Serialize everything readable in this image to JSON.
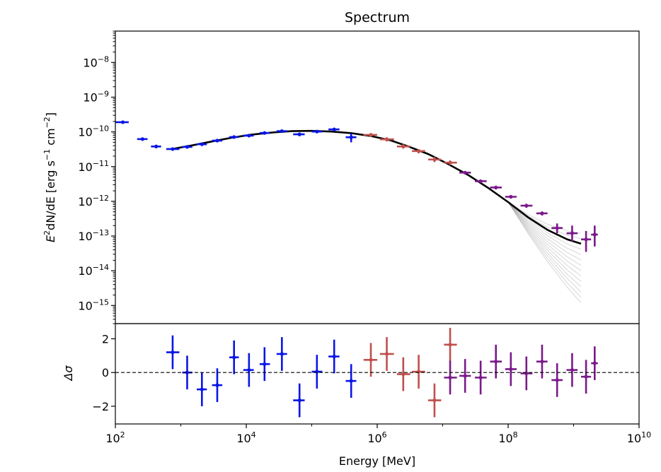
{
  "chart_data": [
    {
      "panel": "spectrum",
      "type": "scatter",
      "title": "Spectrum",
      "xlabel": "Energy [MeV]",
      "ylabel_parts": [
        "E",
        "2",
        "dN/dE [erg s",
        "−1",
        " cm",
        "−2",
        "]"
      ],
      "xscale": "log",
      "yscale": "log",
      "xlim": [
        100,
        10000000000
      ],
      "ylim": [
        3e-16,
        8e-08
      ],
      "xticks": [
        {
          "base": "10",
          "exp": "2"
        },
        {
          "base": "10",
          "exp": "4"
        },
        {
          "base": "10",
          "exp": "6"
        },
        {
          "base": "10",
          "exp": "8"
        },
        {
          "base": "10",
          "exp": "10"
        }
      ],
      "yticks": [
        {
          "base": "10",
          "exp": "−8"
        },
        {
          "base": "10",
          "exp": "−9"
        },
        {
          "base": "10",
          "exp": "−10"
        },
        {
          "base": "10",
          "exp": "−11"
        },
        {
          "base": "10",
          "exp": "−12"
        },
        {
          "base": "10",
          "exp": "−13"
        },
        {
          "base": "10",
          "exp": "−14"
        },
        {
          "base": "10",
          "exp": "−15"
        }
      ],
      "model": {
        "name": "best-fit log-parabola with uncertainty band",
        "curve": [
          [
            800,
            3.3e-11
          ],
          [
            1500,
            4.1e-11
          ],
          [
            3000,
            5.3e-11
          ],
          [
            6000,
            6.8e-11
          ],
          [
            12000,
            8.3e-11
          ],
          [
            25000,
            9.6e-11
          ],
          [
            50000,
            1.05e-10
          ],
          [
            100000,
            1.07e-10
          ],
          [
            200000,
            1.02e-10
          ],
          [
            400000,
            9.2e-11
          ],
          [
            800000,
            7.6e-11
          ],
          [
            1600000,
            5.7e-11
          ],
          [
            3000000,
            3.8e-11
          ],
          [
            6000000,
            2.3e-11
          ],
          [
            12000000,
            1.2e-11
          ],
          [
            25000000,
            5.6e-12
          ],
          [
            50000000,
            2.4e-12
          ],
          [
            100000000,
            9.5e-13
          ],
          [
            200000000,
            3.5e-13
          ],
          [
            400000000,
            1.5e-13
          ],
          [
            800000000,
            8e-14
          ],
          [
            1300000000,
            6e-14
          ]
        ],
        "band_lower_end": 1.2e-15,
        "band_upper_end": 1.2e-13
      },
      "series": [
        {
          "name": "low-energy points (blue)",
          "color": "#0a16e6",
          "points": [
            {
              "x": 130,
              "y": 1.9e-10,
              "xlo": 100,
              "xhi": 160,
              "ylo": 1.85e-10,
              "yhi": 1.95e-10
            },
            {
              "x": 260,
              "y": 6.2e-11,
              "xlo": 215,
              "xhi": 310,
              "ylo": 6e-11,
              "yhi": 6.4e-11
            },
            {
              "x": 420,
              "y": 3.8e-11,
              "xlo": 350,
              "xhi": 500,
              "ylo": 3.4e-11,
              "yhi": 4.2e-11
            },
            {
              "x": 750,
              "y": 3.2e-11,
              "xlo": 600,
              "xhi": 950,
              "ylo": 3e-11,
              "yhi": 3.4e-11
            },
            {
              "x": 1250,
              "y": 3.7e-11,
              "xlo": 1050,
              "xhi": 1500,
              "ylo": 3.5e-11,
              "yhi": 3.9e-11
            },
            {
              "x": 2100,
              "y": 4.4e-11,
              "xlo": 1750,
              "xhi": 2500,
              "ylo": 4.2e-11,
              "yhi": 4.6e-11
            },
            {
              "x": 3600,
              "y": 5.6e-11,
              "xlo": 3000,
              "xhi": 4300,
              "ylo": 5.3e-11,
              "yhi": 5.9e-11
            },
            {
              "x": 6500,
              "y": 7.1e-11,
              "xlo": 5500,
              "xhi": 7700,
              "ylo": 6.7e-11,
              "yhi": 7.5e-11
            },
            {
              "x": 11000,
              "y": 7.8e-11,
              "xlo": 9000,
              "xhi": 13000,
              "ylo": 7.4e-11,
              "yhi": 8.2e-11
            },
            {
              "x": 19000,
              "y": 9.3e-11,
              "xlo": 16000,
              "xhi": 23000,
              "ylo": 8.8e-11,
              "yhi": 9.8e-11
            },
            {
              "x": 35000,
              "y": 1.05e-10,
              "xlo": 29000,
              "xhi": 42000,
              "ylo": 9.5e-11,
              "yhi": 1.15e-10
            },
            {
              "x": 65000,
              "y": 8.5e-11,
              "xlo": 52000,
              "xhi": 78000,
              "ylo": 7.5e-11,
              "yhi": 9.5e-11
            },
            {
              "x": 120000,
              "y": 1.02e-10,
              "xlo": 100000,
              "xhi": 145000,
              "ylo": 9.2e-11,
              "yhi": 1.12e-10
            },
            {
              "x": 220000,
              "y": 1.18e-10,
              "xlo": 180000,
              "xhi": 265000,
              "ylo": 1.05e-10,
              "yhi": 1.3e-10
            },
            {
              "x": 400000,
              "y": 7e-11,
              "xlo": 330000,
              "xhi": 480000,
              "ylo": 5e-11,
              "yhi": 9e-11
            }
          ]
        },
        {
          "name": "mid-energy points (red)",
          "color": "#c0504d",
          "points": [
            {
              "x": 800000,
              "y": 8.2e-11,
              "xlo": 620000,
              "xhi": 1000000,
              "ylo": 7.2e-11,
              "yhi": 9.2e-11
            },
            {
              "x": 1400000,
              "y": 6.1e-11,
              "xlo": 1100000,
              "xhi": 1800000,
              "ylo": 5.3e-11,
              "yhi": 7e-11
            },
            {
              "x": 2500000,
              "y": 3.8e-11,
              "xlo": 2000000,
              "xhi": 3200000,
              "ylo": 3.3e-11,
              "yhi": 4.4e-11
            },
            {
              "x": 4300000,
              "y": 2.8e-11,
              "xlo": 3400000,
              "xhi": 5400000,
              "ylo": 2.4e-11,
              "yhi": 3.2e-11
            },
            {
              "x": 7500000,
              "y": 1.6e-11,
              "xlo": 6000000,
              "xhi": 9500000,
              "ylo": 1.35e-11,
              "yhi": 1.9e-11
            },
            {
              "x": 13000000,
              "y": 1.3e-11,
              "xlo": 10500000,
              "xhi": 16500000,
              "ylo": 1.1e-11,
              "yhi": 1.5e-11
            }
          ]
        },
        {
          "name": "high-energy points (purple)",
          "color": "#7a1a8a",
          "points": [
            {
              "x": 22000000,
              "y": 6.7e-12,
              "xlo": 18000000,
              "xhi": 27000000,
              "ylo": 6.1e-12,
              "yhi": 7.3e-12
            },
            {
              "x": 38000000,
              "y": 3.8e-12,
              "xlo": 31000000,
              "xhi": 47000000,
              "ylo": 3.4e-12,
              "yhi": 4.2e-12
            },
            {
              "x": 65000000,
              "y": 2.5e-12,
              "xlo": 53000000,
              "xhi": 80000000,
              "ylo": 2.2e-12,
              "yhi": 2.8e-12
            },
            {
              "x": 110000000,
              "y": 1.35e-12,
              "xlo": 90000000,
              "xhi": 135000000,
              "ylo": 1.2e-12,
              "yhi": 1.5e-12
            },
            {
              "x": 190000000,
              "y": 7.5e-13,
              "xlo": 155000000,
              "xhi": 235000000,
              "ylo": 6.5e-13,
              "yhi": 8.5e-13
            },
            {
              "x": 330000000,
              "y": 4.5e-13,
              "xlo": 270000000,
              "xhi": 400000000,
              "ylo": 3.9e-13,
              "yhi": 5.1e-13
            },
            {
              "x": 560000000,
              "y": 1.7e-13,
              "xlo": 460000000,
              "xhi": 680000000,
              "ylo": 1.2e-13,
              "yhi": 2.3e-13
            },
            {
              "x": 950000000,
              "y": 1.2e-13,
              "xlo": 780000000,
              "xhi": 1150000000,
              "ylo": 7e-14,
              "yhi": 2e-13
            },
            {
              "x": 1550000000,
              "y": 8e-14,
              "xlo": 1300000000,
              "xhi": 1850000000,
              "ylo": 3.5e-14,
              "yhi": 1.4e-13
            },
            {
              "x": 2100000000,
              "y": 1.1e-13,
              "xlo": 1850000000,
              "xhi": 2350000000,
              "ylo": 5e-14,
              "yhi": 2e-13
            }
          ]
        }
      ]
    },
    {
      "panel": "residuals",
      "type": "scatter",
      "xlabel": "Energy [MeV]",
      "ylabel": "Δσ",
      "xscale": "log",
      "xlim": [
        100,
        10000000000
      ],
      "ylim": [
        -3.05,
        2.9
      ],
      "yticks": [
        "2",
        "0",
        "−2"
      ],
      "zero_line": "dashed",
      "series": [
        {
          "name": "low-energy residuals (blue)",
          "color": "#0a16e6",
          "points": [
            {
              "x": 750,
              "y": 1.2,
              "xlo": 600,
              "xhi": 950,
              "ylo": 0.2,
              "yhi": 2.2
            },
            {
              "x": 1250,
              "y": 0.0,
              "xlo": 1050,
              "xhi": 1500,
              "ylo": -1.0,
              "yhi": 1.0
            },
            {
              "x": 2100,
              "y": -1.0,
              "xlo": 1750,
              "xhi": 2500,
              "ylo": -2.0,
              "yhi": 0.0
            },
            {
              "x": 3600,
              "y": -0.75,
              "xlo": 3000,
              "xhi": 4300,
              "ylo": -1.75,
              "yhi": 0.25
            },
            {
              "x": 6500,
              "y": 0.9,
              "xlo": 5500,
              "xhi": 7700,
              "ylo": -0.1,
              "yhi": 1.9
            },
            {
              "x": 11000,
              "y": 0.15,
              "xlo": 9000,
              "xhi": 13000,
              "ylo": -0.85,
              "yhi": 1.15
            },
            {
              "x": 19000,
              "y": 0.5,
              "xlo": 16000,
              "xhi": 23000,
              "ylo": -0.5,
              "yhi": 1.5
            },
            {
              "x": 35000,
              "y": 1.1,
              "xlo": 29000,
              "xhi": 42000,
              "ylo": 0.1,
              "yhi": 2.1
            },
            {
              "x": 65000,
              "y": -1.65,
              "xlo": 52000,
              "xhi": 78000,
              "ylo": -2.65,
              "yhi": -0.65
            },
            {
              "x": 120000,
              "y": 0.05,
              "xlo": 100000,
              "xhi": 145000,
              "ylo": -0.95,
              "yhi": 1.05
            },
            {
              "x": 220000,
              "y": 0.95,
              "xlo": 180000,
              "xhi": 265000,
              "ylo": -0.05,
              "yhi": 1.95
            },
            {
              "x": 400000,
              "y": -0.5,
              "xlo": 330000,
              "xhi": 480000,
              "ylo": -1.5,
              "yhi": 0.5
            }
          ]
        },
        {
          "name": "mid-energy residuals (red)",
          "color": "#c0504d",
          "points": [
            {
              "x": 800000,
              "y": 0.75,
              "xlo": 620000,
              "xhi": 1000000,
              "ylo": -0.25,
              "yhi": 1.75
            },
            {
              "x": 1400000,
              "y": 1.1,
              "xlo": 1100000,
              "xhi": 1800000,
              "ylo": 0.1,
              "yhi": 2.1
            },
            {
              "x": 2500000,
              "y": -0.1,
              "xlo": 2000000,
              "xhi": 3200000,
              "ylo": -1.1,
              "yhi": 0.9
            },
            {
              "x": 4300000,
              "y": 0.05,
              "xlo": 3400000,
              "xhi": 5400000,
              "ylo": -0.95,
              "yhi": 1.05
            },
            {
              "x": 7500000,
              "y": -1.65,
              "xlo": 6000000,
              "xhi": 9500000,
              "ylo": -2.65,
              "yhi": -0.65
            },
            {
              "x": 13000000,
              "y": 1.65,
              "xlo": 10500000,
              "xhi": 16500000,
              "ylo": 0.65,
              "yhi": 2.65
            }
          ]
        },
        {
          "name": "high-energy residuals (purple)",
          "color": "#7a1a8a",
          "points": [
            {
              "x": 13000000,
              "y": -0.3,
              "xlo": 10500000,
              "xhi": 16500000,
              "ylo": -1.3,
              "yhi": 0.7
            },
            {
              "x": 22000000,
              "y": -0.2,
              "xlo": 18000000,
              "xhi": 27000000,
              "ylo": -1.2,
              "yhi": 0.8
            },
            {
              "x": 38000000,
              "y": -0.3,
              "xlo": 31000000,
              "xhi": 47000000,
              "ylo": -1.3,
              "yhi": 0.7
            },
            {
              "x": 65000000,
              "y": 0.65,
              "xlo": 53000000,
              "xhi": 80000000,
              "ylo": -0.35,
              "yhi": 1.65
            },
            {
              "x": 110000000,
              "y": 0.2,
              "xlo": 90000000,
              "xhi": 135000000,
              "ylo": -0.8,
              "yhi": 1.2
            },
            {
              "x": 190000000,
              "y": -0.05,
              "xlo": 155000000,
              "xhi": 235000000,
              "ylo": -1.05,
              "yhi": 0.95
            },
            {
              "x": 330000000,
              "y": 0.65,
              "xlo": 270000000,
              "xhi": 400000000,
              "ylo": -0.35,
              "yhi": 1.65
            },
            {
              "x": 560000000,
              "y": -0.45,
              "xlo": 460000000,
              "xhi": 680000000,
              "ylo": -1.45,
              "yhi": 0.55
            },
            {
              "x": 950000000,
              "y": 0.15,
              "xlo": 780000000,
              "xhi": 1150000000,
              "ylo": -0.85,
              "yhi": 1.15
            },
            {
              "x": 1550000000,
              "y": -0.25,
              "xlo": 1300000000,
              "xhi": 1850000000,
              "ylo": -1.25,
              "yhi": 0.75
            },
            {
              "x": 2100000000,
              "y": 0.55,
              "xlo": 1850000000,
              "xhi": 2350000000,
              "ylo": -0.45,
              "yhi": 1.55
            }
          ]
        }
      ]
    }
  ]
}
